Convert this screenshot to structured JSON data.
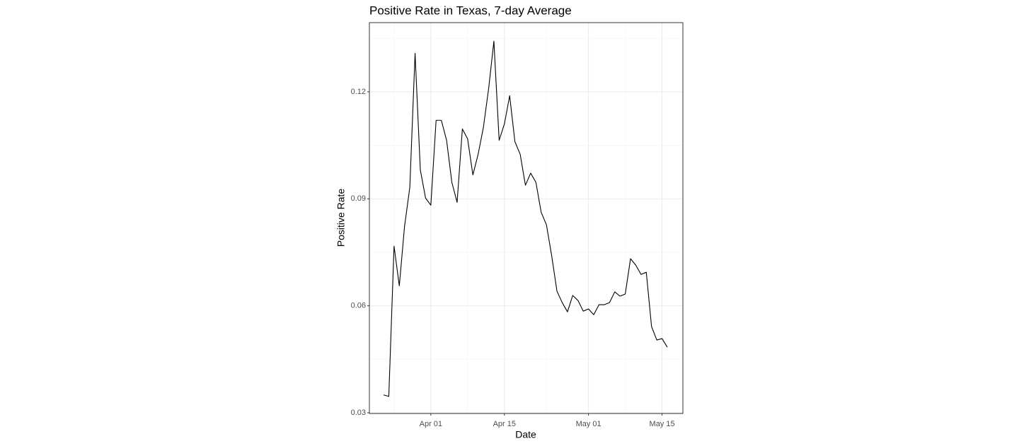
{
  "chart_data": {
    "type": "line",
    "title": "Positive Rate in Texas, 7-day Average",
    "x_label": "Date",
    "y_label": "Positive Rate",
    "x": [
      "Mar 23",
      "Mar 24",
      "Mar 25",
      "Mar 26",
      "Mar 27",
      "Mar 28",
      "Mar 29",
      "Mar 30",
      "Mar 31",
      "Apr 01",
      "Apr 02",
      "Apr 03",
      "Apr 04",
      "Apr 05",
      "Apr 06",
      "Apr 07",
      "Apr 08",
      "Apr 09",
      "Apr 10",
      "Apr 11",
      "Apr 12",
      "Apr 13",
      "Apr 14",
      "Apr 15",
      "Apr 16",
      "Apr 17",
      "Apr 18",
      "Apr 19",
      "Apr 20",
      "Apr 21",
      "Apr 22",
      "Apr 23",
      "Apr 24",
      "Apr 25",
      "Apr 26",
      "Apr 27",
      "Apr 28",
      "Apr 29",
      "Apr 30",
      "May 01",
      "May 02",
      "May 03",
      "May 04",
      "May 05",
      "May 06",
      "May 07",
      "May 08",
      "May 09",
      "May 10",
      "May 11",
      "May 12",
      "May 13",
      "May 14",
      "May 15",
      "May 16"
    ],
    "series": [
      {
        "name": "Positive Rate",
        "color": "#000000",
        "values": [
          0.035,
          0.0346,
          0.0767,
          0.0656,
          0.0823,
          0.0932,
          0.1308,
          0.0981,
          0.0902,
          0.0882,
          0.112,
          0.112,
          0.1064,
          0.0946,
          0.089,
          0.1096,
          0.1068,
          0.0967,
          0.1025,
          0.11,
          0.1209,
          0.1342,
          0.1064,
          0.111,
          0.1189,
          0.106,
          0.1025,
          0.0938,
          0.0972,
          0.0946,
          0.0862,
          0.0827,
          0.074,
          0.0641,
          0.0609,
          0.0583,
          0.0629,
          0.0615,
          0.0585,
          0.0591,
          0.0575,
          0.0603,
          0.0603,
          0.0609,
          0.0639,
          0.0627,
          0.0633,
          0.0732,
          0.0714,
          0.0688,
          0.0694,
          0.0542,
          0.0504,
          0.0508,
          0.0484
        ]
      }
    ],
    "xticks": [
      "Apr 01",
      "Apr 15",
      "May 01",
      "May 15"
    ],
    "ylim": [
      0.0298,
      0.1394
    ],
    "yticks": [
      0.03,
      0.06,
      0.09,
      0.12
    ],
    "grid": true,
    "minor_grid": true
  }
}
